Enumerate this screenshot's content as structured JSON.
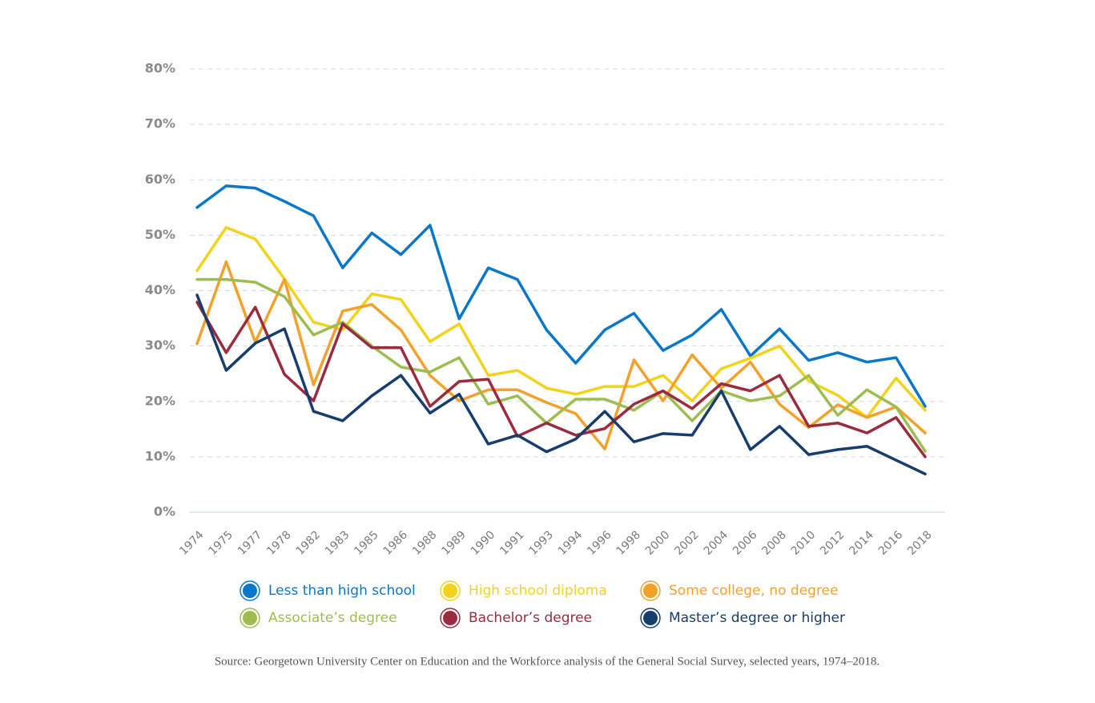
{
  "chart_data": {
    "type": "line",
    "categories": [
      "1974",
      "1975",
      "1977",
      "1978",
      "1982",
      "1983",
      "1985",
      "1986",
      "1988",
      "1989",
      "1990",
      "1991",
      "1993",
      "1994",
      "1996",
      "1998",
      "2000",
      "2002",
      "2004",
      "2006",
      "2008",
      "2010",
      "2012",
      "2014",
      "2016",
      "2018"
    ],
    "series": [
      {
        "name": "Less than high school",
        "color": "#0b77c9",
        "values": [
          55.0,
          58.9,
          58.5,
          56.1,
          53.5,
          44.1,
          50.4,
          46.5,
          51.8,
          34.9,
          44.1,
          42.0,
          32.9,
          26.9,
          32.9,
          35.9,
          29.2,
          32.0,
          36.6,
          28.2,
          33.1,
          27.4,
          28.8,
          27.1,
          27.9,
          19.1
        ]
      },
      {
        "name": "High school diploma",
        "color": "#f2d31c",
        "values": [
          43.6,
          51.4,
          49.3,
          42.1,
          34.3,
          32.9,
          39.4,
          38.4,
          30.8,
          34.0,
          24.7,
          25.6,
          22.4,
          21.3,
          22.7,
          22.7,
          24.7,
          20.1,
          25.9,
          27.8,
          30.0,
          23.7,
          21.1,
          17.1,
          24.2,
          18.4
        ]
      },
      {
        "name": "Some college, no degree",
        "color": "#f4a12c",
        "values": [
          30.4,
          45.2,
          30.7,
          42.0,
          23.0,
          36.3,
          37.5,
          32.9,
          24.7,
          20.1,
          22.1,
          22.1,
          19.8,
          17.8,
          11.4,
          27.5,
          20.1,
          28.4,
          22.4,
          27.1,
          19.5,
          15.3,
          19.4,
          17.1,
          19.0,
          14.3
        ]
      },
      {
        "name": "Associate’s degree",
        "color": "#9dbd51",
        "values": [
          42.0,
          42.0,
          41.5,
          38.9,
          32.0,
          34.3,
          30.0,
          26.2,
          25.3,
          27.9,
          19.5,
          21.0,
          16.1,
          20.4,
          20.4,
          18.4,
          21.9,
          16.5,
          21.9,
          20.1,
          21.0,
          24.7,
          17.5,
          22.1,
          19.0,
          11.0
        ]
      },
      {
        "name": "Bachelor’s degree",
        "color": "#9b2b3e",
        "values": [
          37.9,
          28.8,
          37.0,
          24.9,
          20.1,
          34.0,
          29.7,
          29.7,
          19.1,
          23.6,
          24.0,
          13.7,
          16.1,
          13.9,
          15.1,
          19.5,
          21.9,
          18.7,
          23.2,
          21.9,
          24.7,
          15.5,
          16.1,
          14.3,
          17.1,
          10.0
        ]
      },
      {
        "name": "Master’s degree or higher",
        "color": "#173d6e",
        "values": [
          39.2,
          25.6,
          30.5,
          33.1,
          18.2,
          16.5,
          21.0,
          24.7,
          17.9,
          21.3,
          12.3,
          13.9,
          10.9,
          13.2,
          18.2,
          12.7,
          14.2,
          13.9,
          21.9,
          11.3,
          15.5,
          10.4,
          11.3,
          11.9,
          9.4,
          6.9
        ]
      }
    ],
    "ylim": [
      0,
      80
    ],
    "yticks": [
      {
        "value": 0,
        "label": "0%"
      },
      {
        "value": 10,
        "label": "10%"
      },
      {
        "value": 20,
        "label": "20%"
      },
      {
        "value": 30,
        "label": "30%"
      },
      {
        "value": 40,
        "label": "40%"
      },
      {
        "value": 50,
        "label": "50%"
      },
      {
        "value": 60,
        "label": "60%"
      },
      {
        "value": 70,
        "label": "70%"
      },
      {
        "value": 80,
        "label": "80%"
      }
    ],
    "grid": true,
    "legend": "bottom",
    "source": "Source: Georgetown University Center on Education and the Workforce analysis of the General Social Survey, selected years, 1974–2018."
  }
}
